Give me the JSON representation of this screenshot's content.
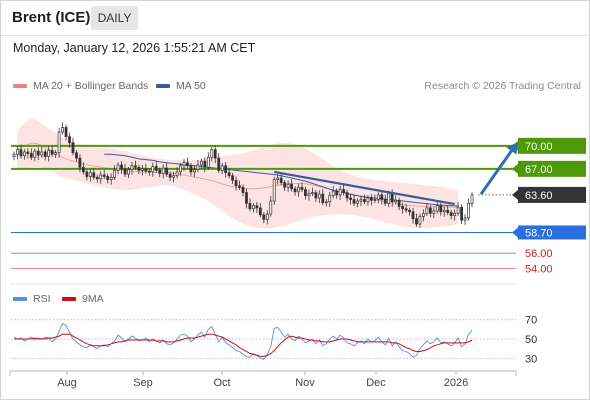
{
  "header": {
    "instrument": "Brent (ICE)",
    "timeframe": "DAILY",
    "timestamp": "Monday, January 12, 2026 1:55:21 AM CET"
  },
  "legend": {
    "bollinger": "MA 20 + Bollinger Bands",
    "ma50": "MA 50",
    "credit": "Research © 2026 Trading Central",
    "rsi": "RSI",
    "rsi_ma": "9MA"
  },
  "colors": {
    "bollinger": "#f08080",
    "bollinger_fill": "#fde3e3",
    "ma50": "#3a5a9a",
    "level_green": "#4c9a0a",
    "level_blue": "#2a6fdb",
    "level_red": "#d02020",
    "price_tag": "#333333",
    "arrow": "#2f6db3",
    "rsi_line": "#5b8de6",
    "rsi_ma": "#cc1111",
    "candle": "#333333"
  },
  "chart_data": [
    {
      "type": "candlestick",
      "x_ticks": [
        "Aug",
        "Sep",
        "Oct",
        "Nov",
        "Dec",
        "2026"
      ],
      "y_range": [
        52.5,
        76.5
      ],
      "levels": [
        {
          "value": 70.0,
          "label": "70.00",
          "style": "resistance"
        },
        {
          "value": 67.0,
          "label": "67.00",
          "style": "resistance"
        },
        {
          "value": 63.6,
          "label": "63.60",
          "style": "last-price"
        },
        {
          "value": 58.7,
          "label": "58.70",
          "style": "support-pivot"
        },
        {
          "value": 56.0,
          "label": "56.00",
          "style": "support"
        },
        {
          "value": 54.0,
          "label": "54.00",
          "style": "support"
        }
      ],
      "closes": [
        68.9,
        69.5,
        68.7,
        69.2,
        69.0,
        68.5,
        69.3,
        68.8,
        69.2,
        68.6,
        69.4,
        68.9,
        69.1,
        71.8,
        72.4,
        71.2,
        70.4,
        69.1,
        68.4,
        67.2,
        66.6,
        66.0,
        66.5,
        65.9,
        65.7,
        66.2,
        66.0,
        65.6,
        65.9,
        66.8,
        67.5,
        67.0,
        66.3,
        66.9,
        67.4,
        67.2,
        66.8,
        67.0,
        66.7,
        66.6,
        67.3,
        66.8,
        66.4,
        67.1,
        66.3,
        65.9,
        66.1,
        66.6,
        67.4,
        67.8,
        67.4,
        66.6,
        66.9,
        67.5,
        68.0,
        67.2,
        68.5,
        69.5,
        68.4,
        66.8,
        67.4,
        66.5,
        66.1,
        65.5,
        64.8,
        64.6,
        63.9,
        62.5,
        61.8,
        62.2,
        61.9,
        61.0,
        60.4,
        61.1,
        62.8,
        65.6,
        65.8,
        65.2,
        64.6,
        65.0,
        64.4,
        64.0,
        64.6,
        64.3,
        63.5,
        63.8,
        63.9,
        63.2,
        63.7,
        62.6,
        62.7,
        63.5,
        64.1,
        63.6,
        64.3,
        63.9,
        63.2,
        63.0,
        62.5,
        62.8,
        63.0,
        62.7,
        63.2,
        62.9,
        63.0,
        63.6,
        63.0,
        62.5,
        63.8,
        62.7,
        62.9,
        62.1,
        61.8,
        61.6,
        61.4,
        60.5,
        59.8,
        60.8,
        61.2,
        61.9,
        61.2,
        61.5,
        62.2,
        61.4,
        61.6,
        61.3,
        60.9,
        61.2,
        62.0,
        60.3,
        60.6,
        62.5,
        63.6
      ],
      "bollinger_upper": [
        72.0,
        73.0,
        73.6,
        73.2,
        72.4,
        71.8,
        71.2,
        70.7,
        70.4,
        70.1,
        69.9,
        69.8,
        69.7,
        69.6,
        69.5,
        69.3,
        69.0,
        68.8,
        68.6,
        68.4,
        68.3,
        68.2,
        68.1,
        68.1,
        68.1,
        68.2,
        68.3,
        68.5,
        68.6,
        68.7,
        68.9,
        69.0,
        69.2,
        69.5,
        69.8,
        70.1,
        70.3,
        70.4,
        70.3,
        70.0,
        69.6,
        69.0,
        68.4,
        67.8,
        67.2,
        66.7,
        66.3,
        66.0,
        65.8,
        65.6,
        65.5,
        65.4,
        65.3,
        65.2,
        65.1,
        65.0,
        64.9,
        64.8,
        64.7,
        64.6,
        64.4,
        64.2
      ],
      "bollinger_lower": [
        67.0,
        67.0,
        67.2,
        67.2,
        67.0,
        66.6,
        66.0,
        65.7,
        65.5,
        65.3,
        65.0,
        64.8,
        64.6,
        64.4,
        64.3,
        64.2,
        64.3,
        64.4,
        64.6,
        64.7,
        64.9,
        64.8,
        64.6,
        64.3,
        63.9,
        63.5,
        63.0,
        62.4,
        61.7,
        61.0,
        60.4,
        59.9,
        59.6,
        59.3,
        59.2,
        59.2,
        59.4,
        59.6,
        59.9,
        60.2,
        60.5,
        60.7,
        60.9,
        61.0,
        61.1,
        61.1,
        61.0,
        60.9,
        60.7,
        60.5,
        60.3,
        60.0,
        59.8,
        59.6,
        59.4,
        59.3,
        59.3,
        59.3,
        59.4,
        59.5,
        59.6,
        59.8
      ],
      "ma50": [
        68.9,
        68.9,
        68.8,
        68.7,
        68.5,
        68.3,
        68.2,
        68.1,
        67.9,
        67.8,
        67.7,
        67.6,
        67.5,
        67.4,
        67.3,
        67.2,
        67.1,
        67.0,
        66.9,
        66.8,
        66.7,
        66.6,
        66.5,
        66.4,
        66.3,
        66.2,
        66.0,
        65.8,
        65.6,
        65.4,
        65.1,
        64.8,
        64.5,
        64.2,
        64.0,
        63.8,
        63.6,
        63.4,
        63.3,
        63.2,
        63.1,
        63.0,
        62.9,
        62.8,
        62.7,
        62.6,
        62.5,
        62.4,
        62.3,
        62.25,
        62.2,
        62.15
      ],
      "trendline": {
        "from": 66.6,
        "to": 62.4
      },
      "projection": {
        "from": 63.7,
        "to": 70.0
      }
    },
    {
      "type": "line",
      "title": "RSI",
      "y_ticks": [
        70,
        50,
        30
      ],
      "y_range": [
        22,
        78
      ],
      "rsi": [
        52,
        50,
        51,
        48,
        50,
        52,
        49,
        51,
        50,
        52,
        51,
        47,
        50,
        58,
        66,
        64,
        57,
        50,
        47,
        44,
        42,
        41,
        44,
        42,
        40,
        43,
        44,
        42,
        45,
        48,
        54,
        51,
        47,
        50,
        53,
        51,
        48,
        49,
        51,
        47,
        50,
        48,
        46,
        49,
        45,
        44,
        46,
        50,
        54,
        55,
        53,
        47,
        50,
        54,
        57,
        52,
        60,
        63,
        55,
        47,
        52,
        46,
        44,
        41,
        38,
        37,
        34,
        32,
        31,
        35,
        33,
        30,
        29,
        34,
        42,
        61,
        62,
        57,
        52,
        55,
        50,
        48,
        53,
        50,
        46,
        48,
        49,
        45,
        49,
        43,
        45,
        50,
        53,
        50,
        54,
        51,
        46,
        45,
        43,
        46,
        48,
        45,
        50,
        47,
        48,
        52,
        47,
        44,
        51,
        43,
        47,
        42,
        38,
        37,
        35,
        31,
        33,
        40,
        44,
        48,
        45,
        47,
        51,
        46,
        47,
        45,
        43,
        46,
        51,
        42,
        45,
        55,
        59
      ],
      "rsi_ma": [
        50,
        50,
        50,
        50,
        50,
        50,
        51,
        50,
        50,
        50,
        51,
        51,
        52,
        53,
        55,
        55,
        55,
        53,
        51,
        49,
        47,
        45,
        44,
        43,
        43,
        43,
        43,
        44,
        45,
        46,
        47,
        47,
        48,
        49,
        49,
        49,
        49,
        49,
        49,
        49,
        49,
        48,
        48,
        48,
        47,
        47,
        47,
        48,
        49,
        50,
        51,
        51,
        51,
        52,
        53,
        54,
        55,
        55,
        54,
        53,
        52,
        50,
        48,
        46,
        44,
        41,
        39,
        37,
        35,
        34,
        33,
        32,
        32,
        33,
        35,
        38,
        42,
        46,
        49,
        52,
        53,
        52,
        51,
        51,
        50,
        49,
        49,
        48,
        48,
        47,
        47,
        47,
        48,
        49,
        50,
        50,
        50,
        49,
        48,
        47,
        47,
        47,
        47,
        47,
        47,
        47,
        47,
        47,
        47,
        46,
        46,
        45,
        43,
        41,
        40,
        38,
        37,
        37,
        38,
        39,
        41,
        43,
        44,
        45,
        46,
        46,
        46,
        46,
        46,
        46,
        46,
        47,
        49
      ]
    }
  ]
}
